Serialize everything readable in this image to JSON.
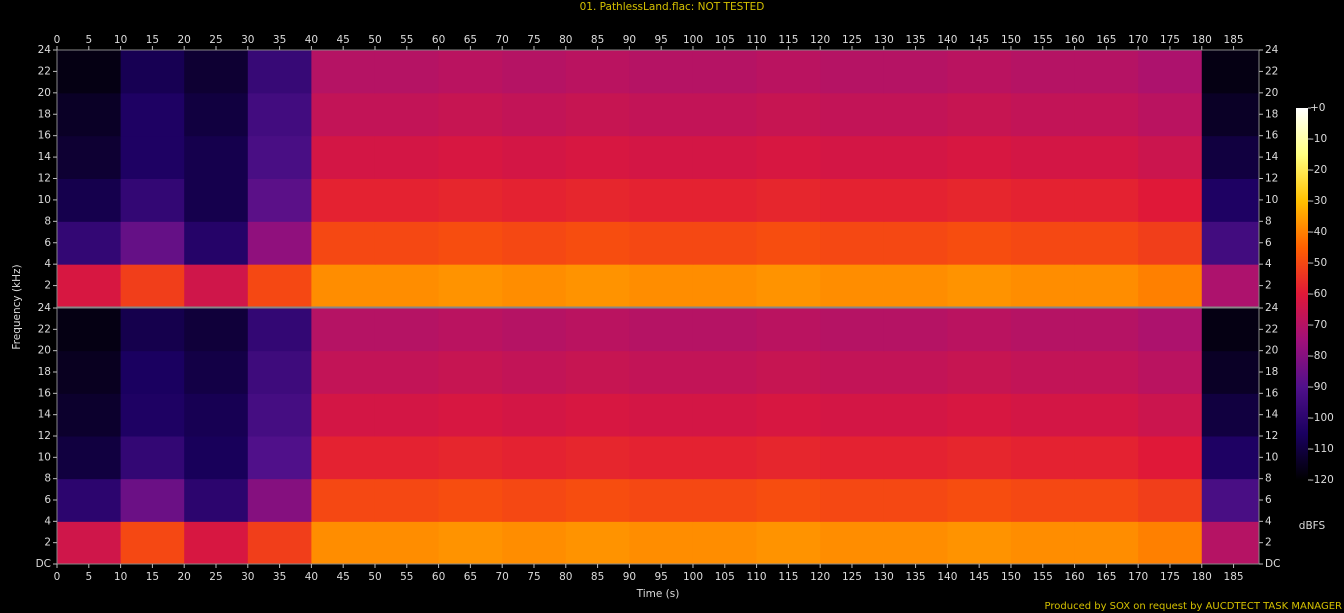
{
  "chart_data": {
    "type": "spectrogram",
    "title": "01. PathlessLand.flac: NOT TESTED",
    "footer": "Produced by SOX on request by AUCDTECT TASK MANAGER",
    "xlabel": "Time (s)",
    "ylabel": "Frequency (kHz)",
    "colorbar_label": "dBFS",
    "xlim": [
      0,
      189
    ],
    "xticks": [
      0,
      5,
      10,
      15,
      20,
      25,
      30,
      35,
      40,
      45,
      50,
      55,
      60,
      65,
      70,
      75,
      80,
      85,
      90,
      95,
      100,
      105,
      110,
      115,
      120,
      125,
      130,
      135,
      140,
      145,
      150,
      155,
      160,
      165,
      170,
      175,
      180,
      185
    ],
    "ylim": [
      0,
      24
    ],
    "clim": [
      -120,
      0
    ],
    "cticks": [
      {
        "value": 0,
        "label": "+0"
      },
      -10,
      -20,
      -30,
      -40,
      -50,
      -60,
      -70,
      -80,
      -90,
      -100,
      -110,
      -120
    ],
    "colormap": [
      "#000000",
      "#1a0060",
      "#50108a",
      "#a0107a",
      "#e01838",
      "#ff6000",
      "#ffc000",
      "#ffff80",
      "#ffffff"
    ],
    "time_bins": [
      0,
      10,
      20,
      30,
      40,
      50,
      60,
      70,
      80,
      90,
      100,
      110,
      120,
      130,
      140,
      150,
      160,
      170,
      180,
      189
    ],
    "freq_bins": [
      0,
      4,
      8,
      12,
      16,
      20,
      24
    ],
    "channels": [
      {
        "yticks": [
          2,
          4,
          6,
          8,
          10,
          12,
          14,
          16,
          18,
          20,
          22,
          24
        ],
        "values": [
          [
            -62,
            -52,
            -64,
            -50,
            -38,
            -38,
            -37,
            -38,
            -37,
            -38,
            -38,
            -37,
            -38,
            -38,
            -37,
            -38,
            -38,
            -40,
            -72
          ],
          [
            -98,
            -86,
            -102,
            -78,
            -50,
            -50,
            -49,
            -50,
            -49,
            -50,
            -50,
            -49,
            -50,
            -50,
            -49,
            -50,
            -50,
            -52,
            -94
          ],
          [
            -108,
            -98,
            -108,
            -88,
            -58,
            -58,
            -57,
            -58,
            -57,
            -58,
            -58,
            -57,
            -58,
            -58,
            -57,
            -58,
            -58,
            -60,
            -104
          ],
          [
            -112,
            -104,
            -108,
            -92,
            -63,
            -63,
            -62,
            -63,
            -62,
            -63,
            -63,
            -62,
            -63,
            -63,
            -62,
            -63,
            -63,
            -65,
            -110
          ],
          [
            -114,
            -104,
            -110,
            -94,
            -67,
            -67,
            -66,
            -67,
            -66,
            -67,
            -67,
            -66,
            -67,
            -67,
            -66,
            -67,
            -67,
            -69,
            -114
          ],
          [
            -117,
            -107,
            -112,
            -97,
            -70,
            -70,
            -69,
            -70,
            -69,
            -70,
            -70,
            -69,
            -70,
            -70,
            -69,
            -70,
            -70,
            -72,
            -117
          ]
        ]
      },
      {
        "yticks": [
          {
            "value": 0,
            "label": "DC"
          },
          2,
          4,
          6,
          8,
          10,
          12,
          14,
          16,
          18,
          20,
          22,
          24
        ],
        "values": [
          [
            -64,
            -50,
            -62,
            -52,
            -38,
            -38,
            -37,
            -38,
            -37,
            -38,
            -38,
            -37,
            -38,
            -38,
            -37,
            -38,
            -38,
            -40,
            -70
          ],
          [
            -100,
            -85,
            -100,
            -80,
            -50,
            -50,
            -49,
            -50,
            -49,
            -50,
            -50,
            -49,
            -50,
            -50,
            -49,
            -50,
            -50,
            -52,
            -92
          ],
          [
            -110,
            -98,
            -106,
            -90,
            -58,
            -58,
            -57,
            -58,
            -57,
            -58,
            -58,
            -57,
            -58,
            -58,
            -57,
            -58,
            -58,
            -60,
            -104
          ],
          [
            -113,
            -104,
            -107,
            -93,
            -63,
            -63,
            -62,
            -63,
            -62,
            -63,
            -63,
            -62,
            -63,
            -63,
            -62,
            -63,
            -63,
            -65,
            -110
          ],
          [
            -115,
            -105,
            -109,
            -95,
            -67,
            -67,
            -66,
            -67,
            -66,
            -67,
            -67,
            -66,
            -67,
            -67,
            -66,
            -67,
            -67,
            -69,
            -114
          ],
          [
            -117,
            -108,
            -111,
            -98,
            -70,
            -70,
            -69,
            -70,
            -69,
            -70,
            -70,
            -69,
            -70,
            -70,
            -69,
            -70,
            -70,
            -72,
            -117
          ]
        ]
      }
    ]
  }
}
